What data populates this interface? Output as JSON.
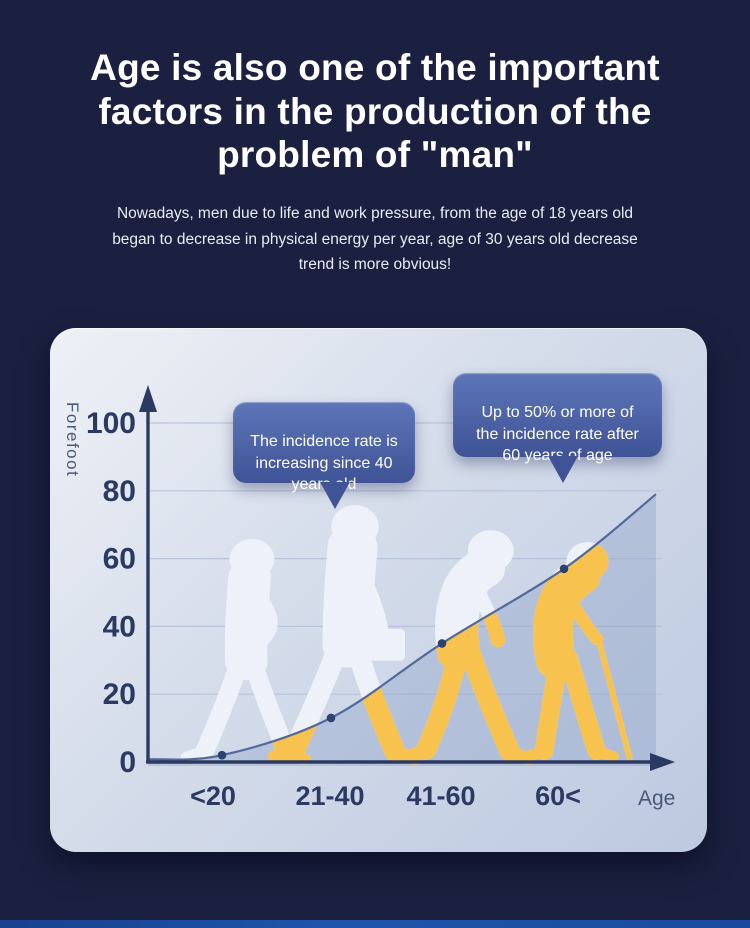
{
  "header": {
    "title": "Age is also one of the important\nfactors in the production of the\nproblem of \"man\"",
    "subtitle": "Nowadays, men due to life and work pressure, from the age of 18 years old\nbegan to decrease in physical energy per year, age of 30 years old decrease\ntrend is more obvious!"
  },
  "chart_data": {
    "type": "line",
    "title": "",
    "ylabel": "Forefoot",
    "xlabel": "Age",
    "categories": [
      "<20",
      "21-40",
      "41-60",
      "60<"
    ],
    "values": [
      2,
      13,
      35,
      57
    ],
    "yticks": [
      0,
      20,
      40,
      60,
      80,
      100
    ],
    "ylim": [
      0,
      110
    ],
    "trend_end_value": 79,
    "grid": "horizontal",
    "legend": "none",
    "annotations": [
      {
        "text": "The incidence rate is\nincreasing since 40\nyears old"
      },
      {
        "text": "Up to 50% or more of\nthe incidence rate after\n60 years of age"
      }
    ],
    "figures": [
      "young-man-walking-silhouette",
      "man-with-briefcase-silhouette",
      "middle-aged-hunched-man-silhouette",
      "elderly-man-with-cane-silhouette"
    ]
  },
  "colors": {
    "background": "#1b2040",
    "footer_bar": "#1e55ab",
    "card_bottom": "#bdc9e0",
    "figure_white": "#edf1f9",
    "figure_yellow": "#f8c24f",
    "under_area": "#7e95c2",
    "curve": "#54689c",
    "dot": "#2c4270",
    "axis": "#2c3a62",
    "grid": "#b4c0d8",
    "tick_text": "#2c3a62",
    "muted_text": "#4b5878",
    "tooltip_top": "#5d76b7",
    "tooltip_bottom": "#3f5396",
    "title_text": "#ffffff",
    "subtitle_text": "#e9ecf5"
  }
}
